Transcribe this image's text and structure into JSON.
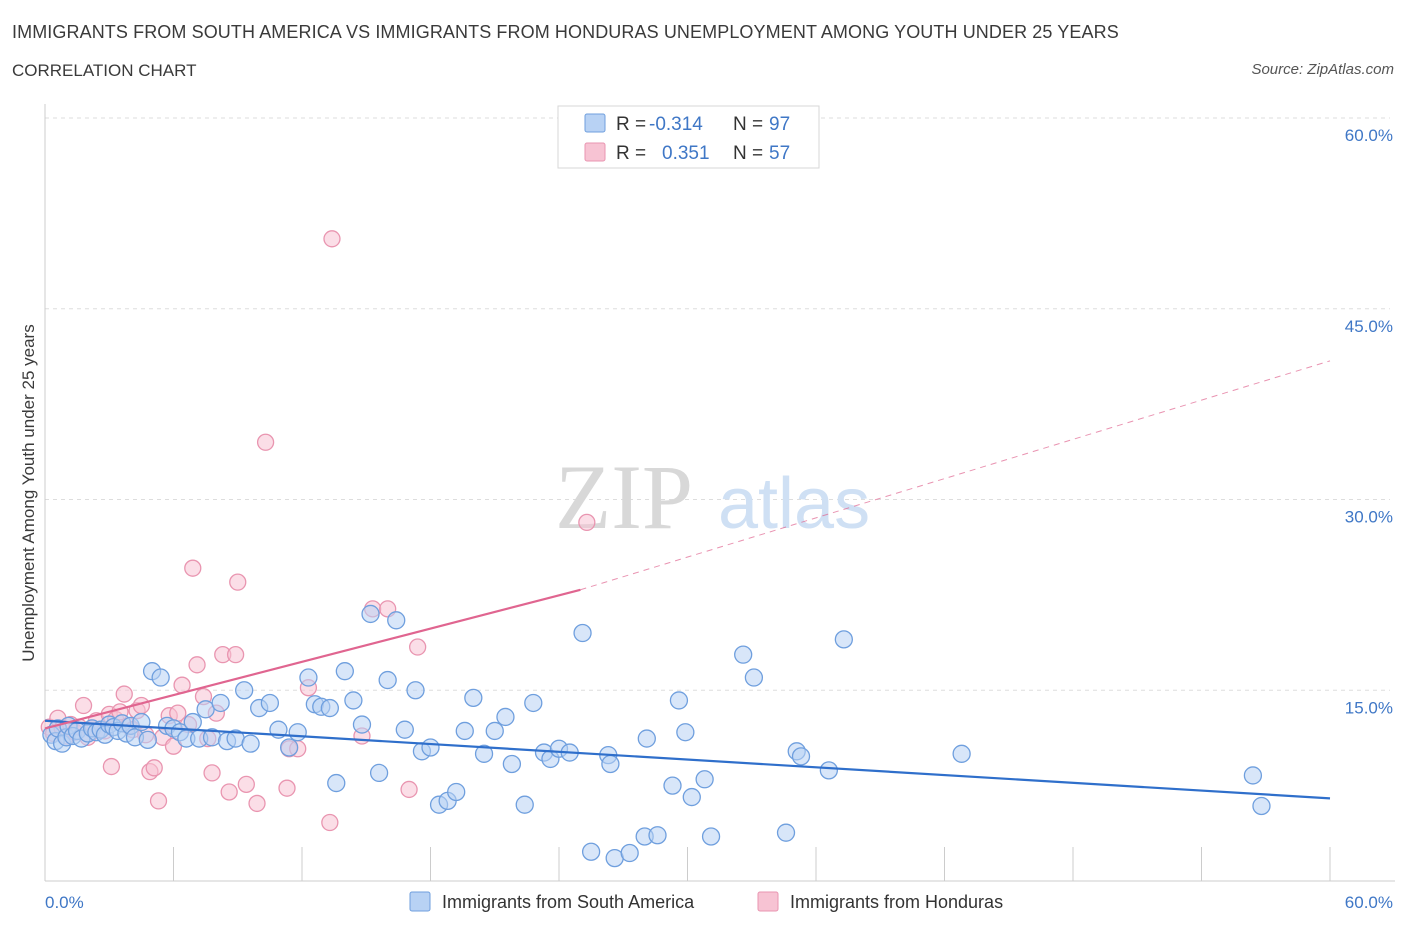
{
  "header": {
    "title": "IMMIGRANTS FROM SOUTH AMERICA VS IMMIGRANTS FROM HONDURAS UNEMPLOYMENT AMONG YOUTH UNDER 25 YEARS",
    "subtitle": "CORRELATION CHART",
    "source": "Source: ZipAtlas.com"
  },
  "watermark": {
    "zip": "ZIP",
    "atlas": "atlas"
  },
  "colors": {
    "blue_fill": "#b8d2f4",
    "blue_stroke": "#6f9fde",
    "blue_line": "#2f6fcb",
    "pink_fill": "#f7c3d3",
    "pink_stroke": "#e995b0",
    "pink_line": "#e06590",
    "grid": "#dddddd",
    "axis_text": "#3f77c6"
  },
  "stats_legend": {
    "rows": [
      {
        "r_label": "R =",
        "r_value": "-0.314",
        "n_label": "N =",
        "n_value": "97"
      },
      {
        "r_label": "R =",
        "r_value": "0.351",
        "n_label": "N =",
        "n_value": "57"
      }
    ]
  },
  "bottom_legend": {
    "items": [
      "Immigrants from South America",
      "Immigrants from Honduras"
    ]
  },
  "chart_data": {
    "type": "scatter",
    "title": "IMMIGRANTS FROM SOUTH AMERICA VS IMMIGRANTS FROM HONDURAS UNEMPLOYMENT AMONG YOUTH UNDER 25 YEARS",
    "xlabel": "",
    "ylabel": "Unemployment Among Youth under 25 years",
    "xlim": [
      0,
      60
    ],
    "ylim": [
      0,
      60
    ],
    "x_tick_labels": [
      "0.0%",
      "60.0%"
    ],
    "y_tick_labels": [
      "15.0%",
      "30.0%",
      "45.0%",
      "60.0%"
    ],
    "y_ticks": [
      15,
      30,
      45,
      60
    ],
    "series": [
      {
        "name": "Immigrants from South America",
        "trend": {
          "x": [
            0,
            60
          ],
          "y": [
            12.6,
            6.5
          ],
          "style": "solid"
        },
        "points": [
          [
            0.3,
            11.5
          ],
          [
            0.5,
            11.0
          ],
          [
            0.6,
            12.0
          ],
          [
            0.8,
            10.8
          ],
          [
            1.0,
            11.3
          ],
          [
            1.1,
            12.2
          ],
          [
            1.3,
            11.4
          ],
          [
            1.5,
            11.8
          ],
          [
            1.7,
            11.2
          ],
          [
            2.0,
            11.6
          ],
          [
            2.2,
            12.0
          ],
          [
            2.4,
            11.7
          ],
          [
            2.6,
            11.9
          ],
          [
            2.8,
            11.5
          ],
          [
            3.0,
            12.3
          ],
          [
            3.2,
            12.1
          ],
          [
            3.4,
            11.8
          ],
          [
            3.6,
            12.4
          ],
          [
            3.8,
            11.6
          ],
          [
            4.0,
            12.2
          ],
          [
            4.2,
            11.3
          ],
          [
            4.5,
            12.5
          ],
          [
            4.8,
            11.1
          ],
          [
            5.0,
            16.5
          ],
          [
            5.4,
            16.0
          ],
          [
            5.7,
            12.2
          ],
          [
            6.0,
            12.0
          ],
          [
            6.3,
            11.7
          ],
          [
            6.6,
            11.2
          ],
          [
            6.9,
            12.5
          ],
          [
            7.2,
            11.2
          ],
          [
            7.5,
            13.5
          ],
          [
            7.8,
            11.3
          ],
          [
            8.2,
            14.0
          ],
          [
            8.5,
            11.0
          ],
          [
            8.9,
            11.2
          ],
          [
            9.3,
            15.0
          ],
          [
            9.6,
            10.8
          ],
          [
            10.0,
            13.6
          ],
          [
            10.5,
            14.0
          ],
          [
            10.9,
            11.9
          ],
          [
            11.4,
            10.5
          ],
          [
            11.8,
            11.7
          ],
          [
            12.3,
            16.0
          ],
          [
            12.6,
            13.9
          ],
          [
            12.9,
            13.7
          ],
          [
            13.3,
            13.6
          ],
          [
            13.6,
            7.7
          ],
          [
            14.0,
            16.5
          ],
          [
            14.4,
            14.2
          ],
          [
            14.8,
            12.3
          ],
          [
            15.2,
            21.0
          ],
          [
            15.6,
            8.5
          ],
          [
            16.0,
            15.8
          ],
          [
            16.4,
            20.5
          ],
          [
            16.8,
            11.9
          ],
          [
            17.3,
            15.0
          ],
          [
            17.6,
            10.2
          ],
          [
            18.0,
            10.5
          ],
          [
            18.4,
            6.0
          ],
          [
            18.8,
            6.3
          ],
          [
            19.2,
            7.0
          ],
          [
            19.6,
            11.8
          ],
          [
            20.0,
            14.4
          ],
          [
            20.5,
            10.0
          ],
          [
            21.0,
            11.8
          ],
          [
            21.5,
            12.9
          ],
          [
            21.8,
            9.2
          ],
          [
            22.4,
            6.0
          ],
          [
            22.8,
            14.0
          ],
          [
            23.3,
            10.1
          ],
          [
            23.6,
            9.6
          ],
          [
            24.0,
            10.4
          ],
          [
            24.5,
            10.1
          ],
          [
            25.1,
            19.5
          ],
          [
            25.5,
            2.3
          ],
          [
            26.3,
            9.9
          ],
          [
            26.4,
            9.2
          ],
          [
            26.6,
            1.8
          ],
          [
            27.3,
            2.2
          ],
          [
            28.0,
            3.5
          ],
          [
            28.6,
            3.6
          ],
          [
            28.1,
            11.2
          ],
          [
            29.3,
            7.5
          ],
          [
            29.6,
            14.2
          ],
          [
            29.9,
            11.7
          ],
          [
            30.2,
            6.6
          ],
          [
            30.8,
            8.0
          ],
          [
            31.1,
            3.5
          ],
          [
            32.6,
            17.8
          ],
          [
            33.1,
            16.0
          ],
          [
            34.6,
            3.8
          ],
          [
            35.1,
            10.2
          ],
          [
            35.3,
            9.8
          ],
          [
            36.6,
            8.7
          ],
          [
            37.3,
            19.0
          ],
          [
            42.8,
            10.0
          ],
          [
            56.4,
            8.3
          ],
          [
            56.8,
            5.9
          ]
        ]
      },
      {
        "name": "Immigrants from Honduras",
        "trend": {
          "x": [
            0,
            25,
            60
          ],
          "y": [
            12.0,
            22.9,
            40.9
          ],
          "style": "solid-then-dashed",
          "solid_to": 25
        },
        "points": [
          [
            0.2,
            12.1
          ],
          [
            0.4,
            11.6
          ],
          [
            0.6,
            12.8
          ],
          [
            0.8,
            12.0
          ],
          [
            1.0,
            11.4
          ],
          [
            1.2,
            12.3
          ],
          [
            1.4,
            11.7
          ],
          [
            1.6,
            12.1
          ],
          [
            1.8,
            13.8
          ],
          [
            2.0,
            11.3
          ],
          [
            2.2,
            12.0
          ],
          [
            2.4,
            12.6
          ],
          [
            2.6,
            11.9
          ],
          [
            2.8,
            11.8
          ],
          [
            3.0,
            13.1
          ],
          [
            3.1,
            9.0
          ],
          [
            3.3,
            12.7
          ],
          [
            3.5,
            13.3
          ],
          [
            3.7,
            14.7
          ],
          [
            3.9,
            12.2
          ],
          [
            4.1,
            11.9
          ],
          [
            4.3,
            13.4
          ],
          [
            4.5,
            13.8
          ],
          [
            4.7,
            11.5
          ],
          [
            4.9,
            8.6
          ],
          [
            5.1,
            8.9
          ],
          [
            5.3,
            6.3
          ],
          [
            5.5,
            11.3
          ],
          [
            5.8,
            13.0
          ],
          [
            6.0,
            10.6
          ],
          [
            6.2,
            13.2
          ],
          [
            6.4,
            15.4
          ],
          [
            6.7,
            12.3
          ],
          [
            6.9,
            24.6
          ],
          [
            7.1,
            17.0
          ],
          [
            7.4,
            14.5
          ],
          [
            7.6,
            11.2
          ],
          [
            7.8,
            8.5
          ],
          [
            8.0,
            13.2
          ],
          [
            8.3,
            17.8
          ],
          [
            8.6,
            7.0
          ],
          [
            8.9,
            17.8
          ],
          [
            9.0,
            23.5
          ],
          [
            9.4,
            7.6
          ],
          [
            9.9,
            6.1
          ],
          [
            10.3,
            34.5
          ],
          [
            11.3,
            7.3
          ],
          [
            11.4,
            10.4
          ],
          [
            11.8,
            10.4
          ],
          [
            12.3,
            15.2
          ],
          [
            13.3,
            4.6
          ],
          [
            13.4,
            50.5
          ],
          [
            14.8,
            11.4
          ],
          [
            15.3,
            21.4
          ],
          [
            16.0,
            21.4
          ],
          [
            17.0,
            7.2
          ],
          [
            17.4,
            18.4
          ],
          [
            25.3,
            28.2
          ]
        ]
      }
    ]
  }
}
